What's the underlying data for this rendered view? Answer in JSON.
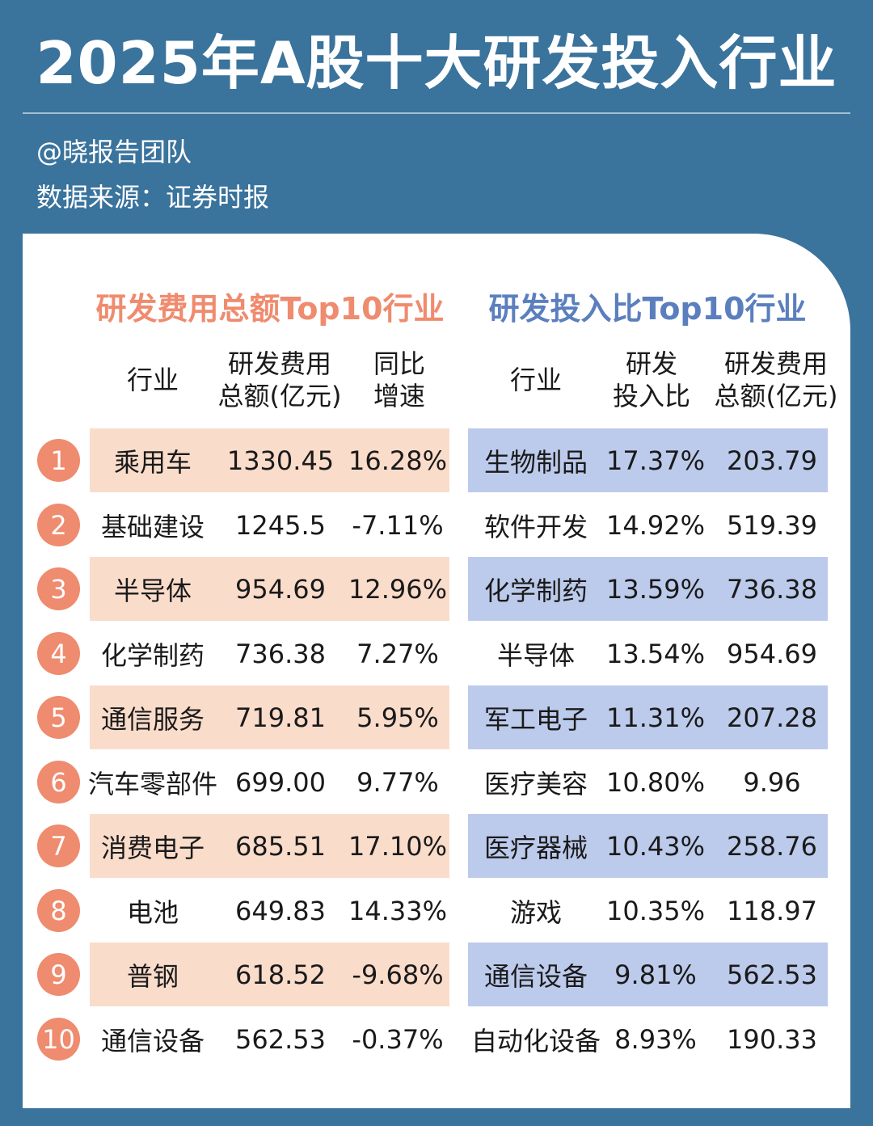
{
  "header": {
    "title": "2025年A股十大研发投入行业",
    "author": "@晓报告团队",
    "source": "数据来源：证券时报"
  },
  "left_table": {
    "title": "研发费用总额Top10行业",
    "columns": [
      "行业",
      "研发费用\n总额(亿元)",
      "同比\n增速"
    ],
    "rows": [
      {
        "rank": "1",
        "industry": "乘用车",
        "amount": "1330.45",
        "growth": "16.28%"
      },
      {
        "rank": "2",
        "industry": "基础建设",
        "amount": "1245.5",
        "growth": "-7.11%"
      },
      {
        "rank": "3",
        "industry": "半导体",
        "amount": "954.69",
        "growth": "12.96%"
      },
      {
        "rank": "4",
        "industry": "化学制药",
        "amount": "736.38",
        "growth": "7.27%"
      },
      {
        "rank": "5",
        "industry": "通信服务",
        "amount": "719.81",
        "growth": "5.95%"
      },
      {
        "rank": "6",
        "industry": "汽车零部件",
        "amount": "699.00",
        "growth": "9.77%"
      },
      {
        "rank": "7",
        "industry": "消费电子",
        "amount": "685.51",
        "growth": "17.10%"
      },
      {
        "rank": "8",
        "industry": "电池",
        "amount": "649.83",
        "growth": "14.33%"
      },
      {
        "rank": "9",
        "industry": "普钢",
        "amount": "618.52",
        "growth": "-9.68%"
      },
      {
        "rank": "10",
        "industry": "通信设备",
        "amount": "562.53",
        "growth": "-0.37%"
      }
    ]
  },
  "right_table": {
    "title": "研发投入比Top10行业",
    "columns": [
      "行业",
      "研发\n投入比",
      "研发费用\n总额(亿元)"
    ],
    "rows": [
      {
        "industry": "生物制品",
        "ratio": "17.37%",
        "amount": "203.79"
      },
      {
        "industry": "软件开发",
        "ratio": "14.92%",
        "amount": "519.39"
      },
      {
        "industry": "化学制药",
        "ratio": "13.59%",
        "amount": "736.38"
      },
      {
        "industry": "半导体",
        "ratio": "13.54%",
        "amount": "954.69"
      },
      {
        "industry": "军工电子",
        "ratio": "11.31%",
        "amount": "207.28"
      },
      {
        "industry": "医疗美容",
        "ratio": "10.80%",
        "amount": "9.96"
      },
      {
        "industry": "医疗器械",
        "ratio": "10.43%",
        "amount": "258.76"
      },
      {
        "industry": "游戏",
        "ratio": "10.35%",
        "amount": "118.97"
      },
      {
        "industry": "通信设备",
        "ratio": "9.81%",
        "amount": "562.53"
      },
      {
        "industry": "自动化设备",
        "ratio": "8.93%",
        "amount": "190.33"
      }
    ]
  },
  "colors": {
    "background": "#3a739c",
    "accent_left": "#ef8b6e",
    "row_left": "#fadccb",
    "accent_right": "#5b7fbe",
    "row_right": "#bccaeb"
  }
}
